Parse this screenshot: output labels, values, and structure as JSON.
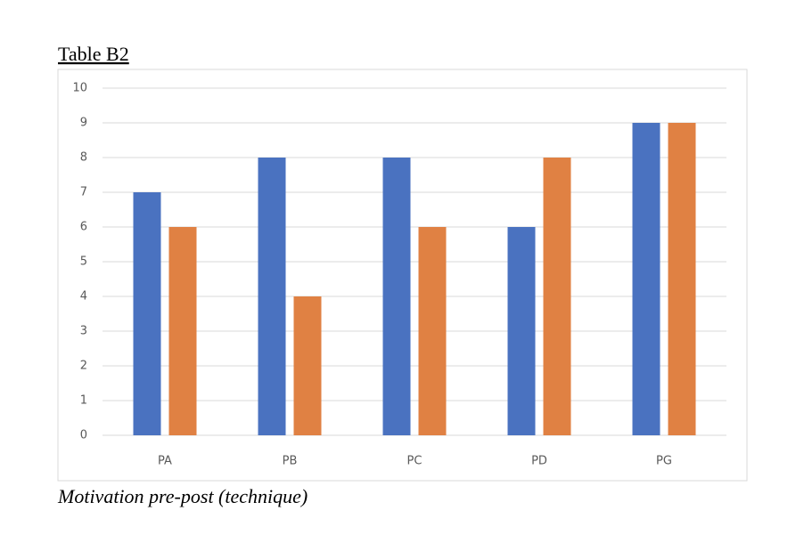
{
  "chart_data": {
    "type": "bar",
    "title": "Table B2",
    "caption": "Motivation pre-post (technique)",
    "categories": [
      "PA",
      "PB",
      "PC",
      "PD",
      "PG"
    ],
    "series": [
      {
        "color": "#4a72c0",
        "values": [
          7,
          8,
          8,
          6,
          9
        ]
      },
      {
        "color": "#e08143",
        "values": [
          6,
          4,
          6,
          8,
          9
        ]
      }
    ],
    "ylim": [
      0,
      10
    ],
    "yticks": [
      0,
      1,
      2,
      3,
      4,
      5,
      6,
      7,
      8,
      9,
      10
    ],
    "grid": true
  }
}
